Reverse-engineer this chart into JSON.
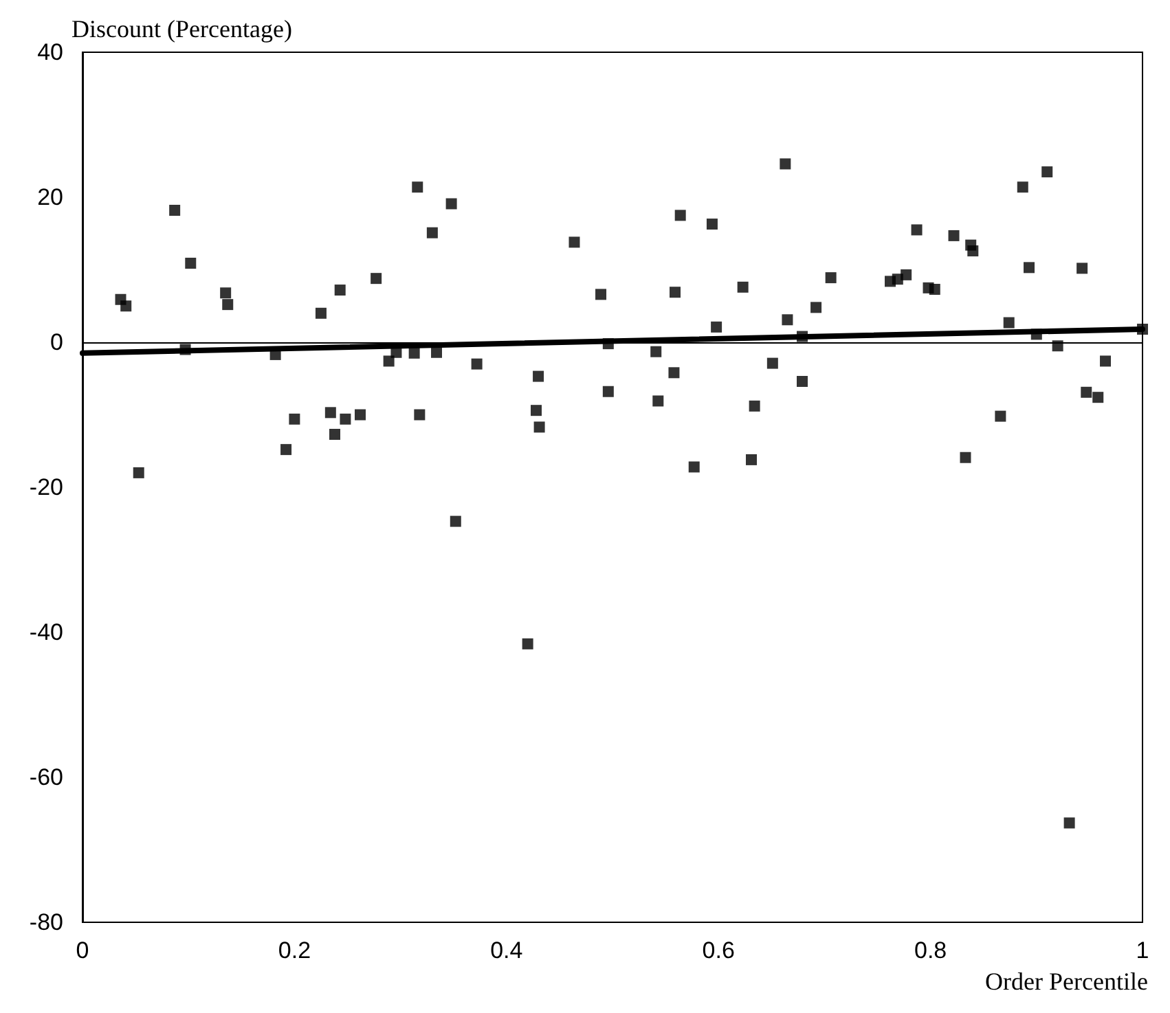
{
  "chart_data": {
    "type": "scatter",
    "xlabel": "Order Percentile",
    "ylabel": "Discount (Percentage)",
    "xlim": [
      0,
      1
    ],
    "xticks": [
      0,
      0.2,
      0.4,
      0.6,
      0.8,
      1
    ],
    "ylim": [
      -80,
      40
    ],
    "yticks": [
      -80,
      -60,
      -40,
      -20,
      0,
      20,
      40
    ],
    "grid": false,
    "marker": "square",
    "ref_lines": [
      {
        "axis": "y",
        "value": 0,
        "color": "#000000"
      }
    ],
    "series": [
      {
        "color": "#000000",
        "x": [
          0.036,
          0.041,
          0.053,
          0.087,
          0.102,
          0.097,
          0.135,
          0.137,
          0.182,
          0.192,
          0.2,
          0.225,
          0.234,
          0.238,
          0.243,
          0.248,
          0.262,
          0.277,
          0.289,
          0.296,
          0.313,
          0.316,
          0.318,
          0.33,
          0.334,
          0.348,
          0.352,
          0.372,
          0.42,
          0.428,
          0.43,
          0.431,
          0.464,
          0.489,
          0.496,
          0.496,
          0.541,
          0.543,
          0.558,
          0.559,
          0.564,
          0.577,
          0.594,
          0.598,
          0.623,
          0.631,
          0.634,
          0.651,
          0.663,
          0.665,
          0.679,
          0.679,
          0.692,
          0.706,
          0.762,
          0.769,
          0.777,
          0.787,
          0.798,
          0.804,
          0.822,
          0.833,
          0.838,
          0.84,
          0.866,
          0.874,
          0.887,
          0.893,
          0.9,
          0.91,
          0.92,
          0.931,
          0.943,
          0.947,
          0.958,
          0.965,
          1.0
        ],
        "values": [
          5.9,
          5.0,
          -18.0,
          18.2,
          10.9,
          -1.0,
          6.8,
          5.2,
          -1.7,
          -14.8,
          -10.6,
          4.0,
          -9.7,
          -12.7,
          7.2,
          -10.6,
          -10.0,
          8.8,
          -2.6,
          -1.4,
          -1.5,
          21.4,
          -10.0,
          15.1,
          -1.4,
          19.1,
          -24.7,
          -3.0,
          -41.6,
          -9.4,
          -4.7,
          -11.7,
          13.8,
          6.6,
          -0.2,
          -6.8,
          -1.3,
          -8.1,
          -4.2,
          6.9,
          17.5,
          -17.2,
          16.3,
          2.1,
          7.6,
          -16.2,
          -8.8,
          -2.9,
          24.6,
          3.1,
          -5.4,
          0.8,
          4.8,
          8.9,
          8.4,
          8.7,
          9.3,
          15.5,
          7.5,
          7.3,
          14.7,
          -15.9,
          13.4,
          12.6,
          -10.2,
          2.7,
          21.4,
          10.3,
          1.1,
          23.5,
          -0.5,
          -66.3,
          10.2,
          -6.9,
          -7.6,
          -2.6,
          1.8
        ]
      },
      {
        "type": "line",
        "color": "#000000",
        "marker": "none",
        "line_style": "solid",
        "x": [
          0,
          1
        ],
        "values": [
          -1.5,
          1.8
        ]
      }
    ]
  }
}
